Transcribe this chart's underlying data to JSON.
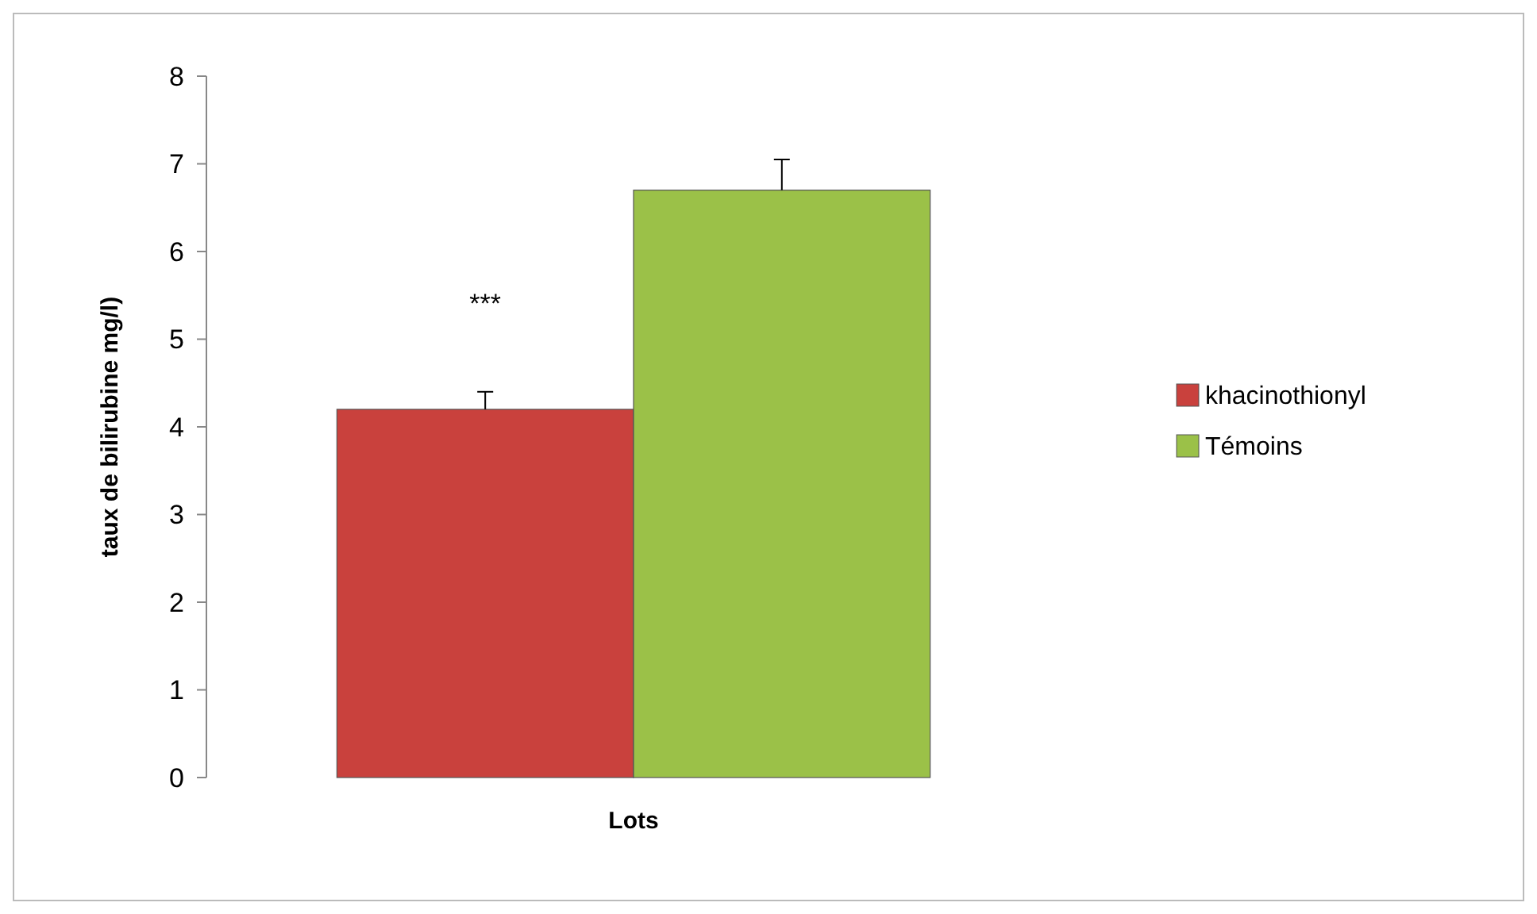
{
  "chart_data": {
    "type": "bar",
    "xlabel": "Lots",
    "ylabel": "taux de bilirubine mg/l)",
    "categories": [
      null
    ],
    "series": [
      {
        "name": "khacinothionyl",
        "color": "#c9413d",
        "values": [
          4.2
        ],
        "errors": [
          0.2
        ]
      },
      {
        "name": "Témoins",
        "color": "#9bc148",
        "values": [
          6.7
        ],
        "errors": [
          0.35
        ]
      }
    ],
    "ylim": [
      0,
      8
    ],
    "yticks": [
      0,
      1,
      2,
      3,
      4,
      5,
      6,
      7,
      8
    ],
    "grid": false,
    "legend": "right",
    "annotations": [
      "***"
    ]
  }
}
